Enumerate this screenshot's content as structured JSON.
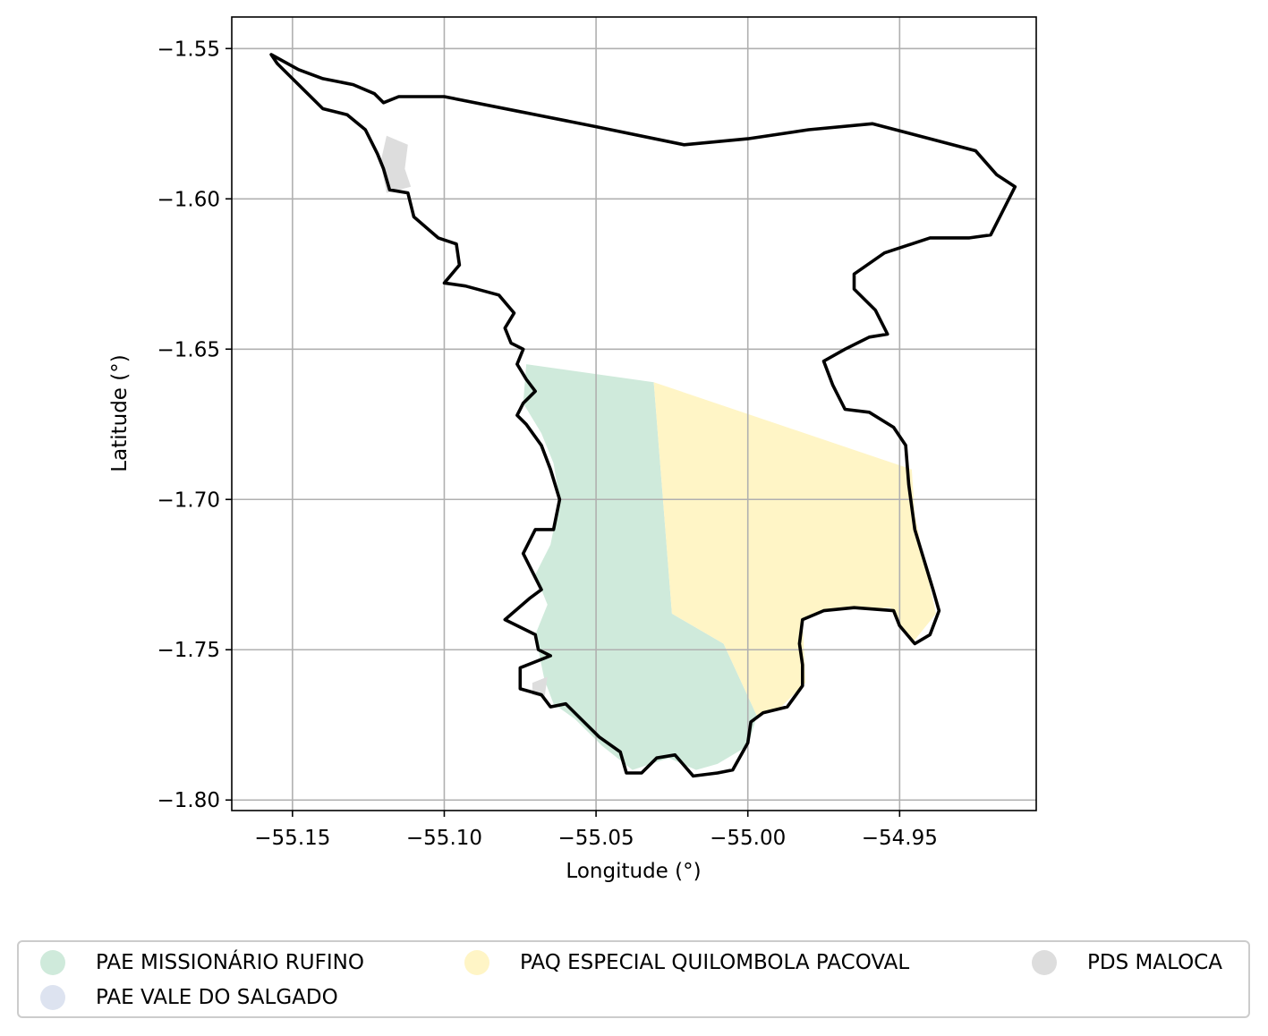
{
  "chart_data": {
    "type": "map",
    "xlabel": "Longitude (°)",
    "ylabel": "Latitude (°)",
    "xlim": [
      -55.17,
      -54.905
    ],
    "ylim": [
      -1.8035,
      -1.5395
    ],
    "x_ticks": [
      -55.15,
      -55.1,
      -55.05,
      -55.0,
      -54.95
    ],
    "x_tick_labels": [
      "−55.15",
      "−55.10",
      "−55.05",
      "−55.00",
      "−54.95"
    ],
    "y_ticks": [
      -1.55,
      -1.6,
      -1.65,
      -1.7,
      -1.75,
      -1.8
    ],
    "y_tick_labels": [
      "−1.55",
      "−1.60",
      "−1.65",
      "−1.70",
      "−1.75",
      "−1.80"
    ],
    "grid": true,
    "legend_position": "bottom",
    "legend": [
      {
        "name": "PAE MISSIONÁRIO RUFINO",
        "color": "#cfeadb"
      },
      {
        "name": "PAQ ESPECIAL QUILOMBOLA PACOVAL",
        "color": "#fff5c6"
      },
      {
        "name": "PDS MALOCA",
        "color": "#dddddd"
      },
      {
        "name": "PAE VALE DO SALGADO",
        "color": "#dde3f0"
      }
    ],
    "regions": [
      {
        "name": "PAE MISSIONÁRIO RUFINO",
        "color": "#cfeadb",
        "coords": [
          [
            -55.073,
            -1.655
          ],
          [
            -55.031,
            -1.661
          ],
          [
            -55.025,
            -1.738
          ],
          [
            -55.008,
            -1.748
          ],
          [
            -54.997,
            -1.772
          ],
          [
            -55.0,
            -1.782
          ],
          [
            -55.01,
            -1.788
          ],
          [
            -55.017,
            -1.79
          ],
          [
            -55.026,
            -1.786
          ],
          [
            -55.038,
            -1.79
          ],
          [
            -55.048,
            -1.782
          ],
          [
            -55.057,
            -1.773
          ],
          [
            -55.064,
            -1.768
          ],
          [
            -55.067,
            -1.76
          ],
          [
            -55.07,
            -1.745
          ],
          [
            -55.066,
            -1.735
          ],
          [
            -55.07,
            -1.725
          ],
          [
            -55.065,
            -1.715
          ],
          [
            -55.062,
            -1.7
          ],
          [
            -55.064,
            -1.688
          ],
          [
            -55.068,
            -1.678
          ],
          [
            -55.074,
            -1.668
          ]
        ]
      },
      {
        "name": "PAQ ESPECIAL QUILOMBOLA PACOVAL",
        "color": "#fff5c6",
        "coords": [
          [
            -55.031,
            -1.661
          ],
          [
            -54.946,
            -1.69
          ],
          [
            -54.945,
            -1.705
          ],
          [
            -54.942,
            -1.72
          ],
          [
            -54.938,
            -1.738
          ],
          [
            -54.946,
            -1.748
          ],
          [
            -54.953,
            -1.736
          ],
          [
            -54.975,
            -1.737
          ],
          [
            -54.982,
            -1.74
          ],
          [
            -54.981,
            -1.761
          ],
          [
            -54.99,
            -1.77
          ],
          [
            -54.997,
            -1.772
          ],
          [
            -55.008,
            -1.748
          ],
          [
            -55.025,
            -1.738
          ]
        ]
      },
      {
        "name": "PDS MALOCA",
        "color": "#dddddd",
        "coords": [
          [
            -55.119,
            -1.579
          ],
          [
            -55.112,
            -1.582
          ],
          [
            -55.113,
            -1.59
          ],
          [
            -55.111,
            -1.596
          ],
          [
            -55.119,
            -1.598
          ],
          [
            -55.121,
            -1.588
          ]
        ]
      },
      {
        "name": "PDS MALOCA",
        "color": "#dddddd",
        "coords": [
          [
            -55.071,
            -1.761
          ],
          [
            -55.066,
            -1.759
          ],
          [
            -55.067,
            -1.766
          ],
          [
            -55.071,
            -1.765
          ]
        ]
      }
    ],
    "boundary": [
      [
        -55.157,
        -1.552
      ],
      [
        -55.148,
        -1.557
      ],
      [
        -55.14,
        -1.56
      ],
      [
        -55.13,
        -1.562
      ],
      [
        -55.123,
        -1.565
      ],
      [
        -55.12,
        -1.568
      ],
      [
        -55.115,
        -1.566
      ],
      [
        -55.1,
        -1.566
      ],
      [
        -55.075,
        -1.571
      ],
      [
        -55.05,
        -1.576
      ],
      [
        -55.021,
        -1.582
      ],
      [
        -55.0,
        -1.58
      ],
      [
        -54.98,
        -1.577
      ],
      [
        -54.959,
        -1.575
      ],
      [
        -54.94,
        -1.58
      ],
      [
        -54.925,
        -1.584
      ],
      [
        -54.918,
        -1.592
      ],
      [
        -54.912,
        -1.596
      ],
      [
        -54.915,
        -1.602
      ],
      [
        -54.92,
        -1.612
      ],
      [
        -54.927,
        -1.613
      ],
      [
        -54.94,
        -1.613
      ],
      [
        -54.955,
        -1.618
      ],
      [
        -54.965,
        -1.625
      ],
      [
        -54.965,
        -1.63
      ],
      [
        -54.958,
        -1.637
      ],
      [
        -54.954,
        -1.645
      ],
      [
        -54.96,
        -1.646
      ],
      [
        -54.968,
        -1.65
      ],
      [
        -54.975,
        -1.654
      ],
      [
        -54.972,
        -1.662
      ],
      [
        -54.968,
        -1.67
      ],
      [
        -54.96,
        -1.671
      ],
      [
        -54.952,
        -1.676
      ],
      [
        -54.948,
        -1.682
      ],
      [
        -54.947,
        -1.695
      ],
      [
        -54.945,
        -1.71
      ],
      [
        -54.942,
        -1.72
      ],
      [
        -54.939,
        -1.73
      ],
      [
        -54.937,
        -1.737
      ],
      [
        -54.94,
        -1.745
      ],
      [
        -54.945,
        -1.748
      ],
      [
        -54.95,
        -1.742
      ],
      [
        -54.952,
        -1.737
      ],
      [
        -54.965,
        -1.736
      ],
      [
        -54.975,
        -1.737
      ],
      [
        -54.982,
        -1.74
      ],
      [
        -54.983,
        -1.748
      ],
      [
        -54.982,
        -1.755
      ],
      [
        -54.982,
        -1.762
      ],
      [
        -54.987,
        -1.769
      ],
      [
        -54.995,
        -1.771
      ],
      [
        -54.999,
        -1.774
      ],
      [
        -55.0,
        -1.781
      ],
      [
        -55.005,
        -1.79
      ],
      [
        -55.01,
        -1.791
      ],
      [
        -55.018,
        -1.792
      ],
      [
        -55.024,
        -1.785
      ],
      [
        -55.03,
        -1.786
      ],
      [
        -55.035,
        -1.791
      ],
      [
        -55.04,
        -1.791
      ],
      [
        -55.042,
        -1.784
      ],
      [
        -55.049,
        -1.779
      ],
      [
        -55.055,
        -1.773
      ],
      [
        -55.06,
        -1.768
      ],
      [
        -55.065,
        -1.769
      ],
      [
        -55.068,
        -1.765
      ],
      [
        -55.075,
        -1.763
      ],
      [
        -55.075,
        -1.756
      ],
      [
        -55.065,
        -1.752
      ],
      [
        -55.069,
        -1.75
      ],
      [
        -55.07,
        -1.745
      ],
      [
        -55.08,
        -1.74
      ],
      [
        -55.072,
        -1.733
      ],
      [
        -55.068,
        -1.73
      ],
      [
        -55.07,
        -1.726
      ],
      [
        -55.074,
        -1.718
      ],
      [
        -55.07,
        -1.71
      ],
      [
        -55.064,
        -1.71
      ],
      [
        -55.062,
        -1.7
      ],
      [
        -55.065,
        -1.69
      ],
      [
        -55.068,
        -1.682
      ],
      [
        -55.073,
        -1.675
      ],
      [
        -55.076,
        -1.672
      ],
      [
        -55.074,
        -1.668
      ],
      [
        -55.07,
        -1.664
      ],
      [
        -55.073,
        -1.66
      ],
      [
        -55.076,
        -1.655
      ],
      [
        -55.074,
        -1.65
      ],
      [
        -55.078,
        -1.648
      ],
      [
        -55.08,
        -1.643
      ],
      [
        -55.077,
        -1.638
      ],
      [
        -55.082,
        -1.632
      ],
      [
        -55.093,
        -1.629
      ],
      [
        -55.1,
        -1.628
      ],
      [
        -55.095,
        -1.622
      ],
      [
        -55.096,
        -1.615
      ],
      [
        -55.102,
        -1.613
      ],
      [
        -55.11,
        -1.606
      ],
      [
        -55.112,
        -1.598
      ],
      [
        -55.118,
        -1.597
      ],
      [
        -55.12,
        -1.59
      ],
      [
        -55.122,
        -1.585
      ],
      [
        -55.126,
        -1.577
      ],
      [
        -55.132,
        -1.572
      ],
      [
        -55.14,
        -1.57
      ],
      [
        -55.145,
        -1.565
      ],
      [
        -55.15,
        -1.56
      ],
      [
        -55.155,
        -1.555
      ],
      [
        -55.157,
        -1.552
      ]
    ]
  }
}
